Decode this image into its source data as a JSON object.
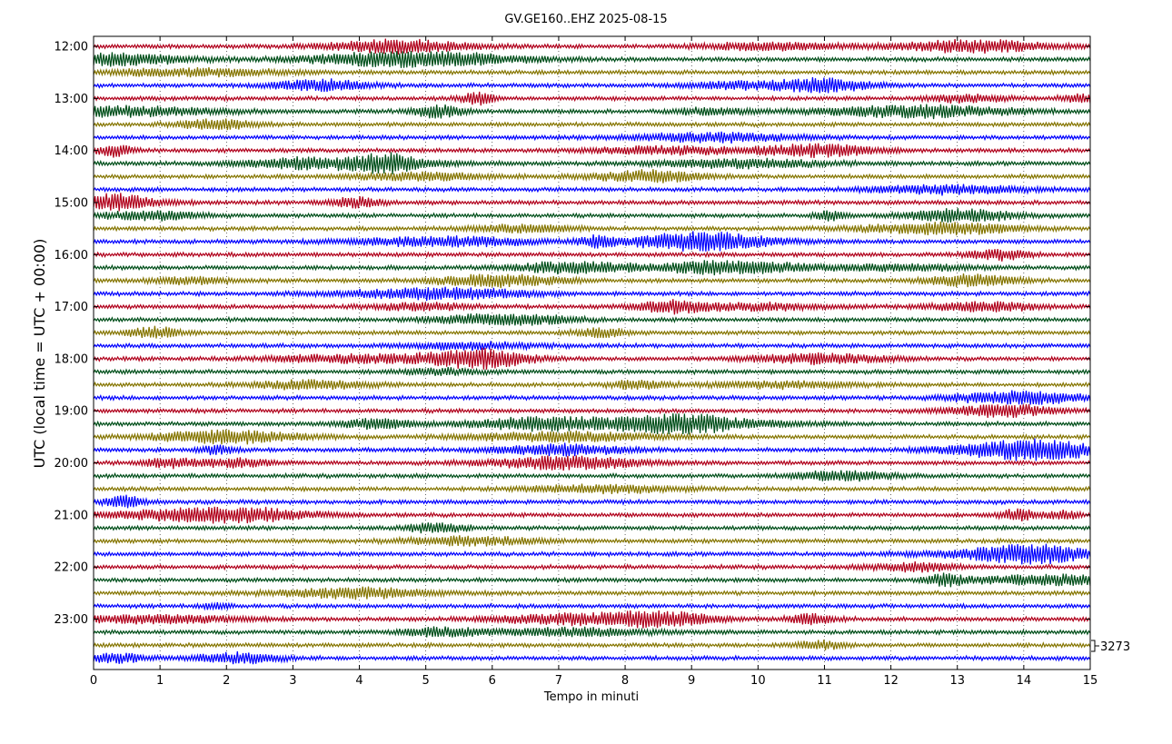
{
  "chart_data": {
    "type": "line",
    "title": "GV.GE160..EHZ 2025-08-15",
    "xlabel": "Tempo in minuti",
    "ylabel": "UTC (local time = UTC + 00:00)",
    "xlim": [
      0,
      15
    ],
    "x_ticks": [
      "0",
      "1",
      "2",
      "3",
      "4",
      "5",
      "6",
      "7",
      "8",
      "9",
      "10",
      "11",
      "12",
      "13",
      "14",
      "15"
    ],
    "y_tick_labels": [
      "12:00",
      "13:00",
      "14:00",
      "15:00",
      "16:00",
      "17:00",
      "18:00",
      "19:00",
      "20:00",
      "21:00",
      "22:00",
      "23:00"
    ],
    "trace_interval_minutes": 15,
    "trace_count": 48,
    "first_trace_time": "12:00",
    "trace_colors": [
      "#b0001b",
      "#004f1a",
      "#857500",
      "#0000ff"
    ],
    "scale_label": "3273",
    "grid": "vertical dotted at each minute"
  }
}
